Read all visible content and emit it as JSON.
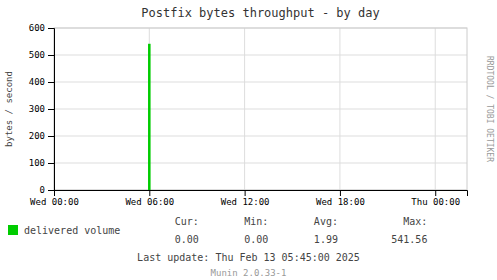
{
  "chart_data": {
    "type": "bar",
    "title": "Postfix bytes throughput - by day",
    "y_label": "bytes / second",
    "x": [
      6.0
    ],
    "series": [
      {
        "name": "delivered volume",
        "color": "#00cc00",
        "values": [
          541.56
        ]
      }
    ],
    "xlim": [
      0,
      26.0
    ],
    "xticks": [
      {
        "value": 0,
        "label": "Wed 00:00"
      },
      {
        "value": 6,
        "label": "Wed 06:00"
      },
      {
        "value": 12,
        "label": "Wed 12:00"
      },
      {
        "value": 18,
        "label": "Wed 18:00"
      },
      {
        "value": 24,
        "label": "Thu 00:00"
      }
    ],
    "ylim": [
      0,
      600
    ],
    "yticks": [
      0,
      100,
      200,
      300,
      400,
      500,
      600
    ],
    "grid": true,
    "legend": "bottom",
    "stats": [
      {
        "label": "Cur:",
        "value": "0.00"
      },
      {
        "label": "Min:",
        "value": "0.00"
      },
      {
        "label": "Avg:",
        "value": "1.99"
      },
      {
        "label": "Max:",
        "value": "541.56"
      }
    ],
    "annotations": [
      "Last update:  Thu Feb 13 05:45:00 2025",
      "Munin 2.0.33-1",
      "RRDTOOL / TOBI OETIKER"
    ]
  }
}
